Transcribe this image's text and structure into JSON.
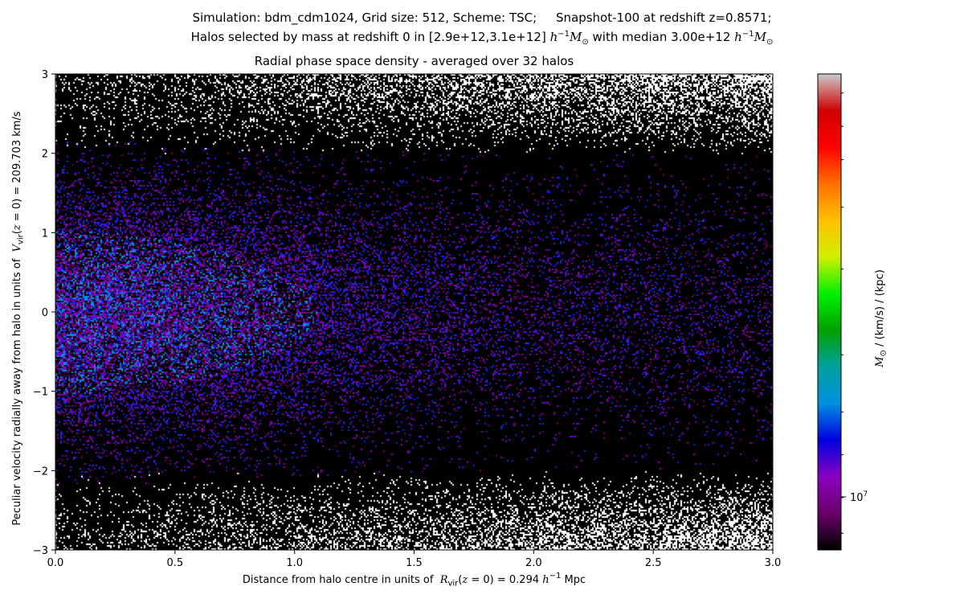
{
  "suptitle_line1": "Simulation: bdm_cdm1024, Grid size: 512, Scheme: TSC;     Snapshot-100 at redshift z=0.8571;",
  "suptitle_line2_prefix": "Halos selected by mass at redshift 0 in [2.9e+12,3.1e+12] ",
  "suptitle_line2_mid": " with median 3.00e+12 ",
  "mass_unit_h": "h",
  "mass_unit_exp": "−1",
  "mass_unit_M": "M",
  "mass_unit_sun": "⊙",
  "colors": {
    "colormap": [
      "#000000",
      "#6a006a",
      "#8a00c0",
      "#0000e0",
      "#0090e0",
      "#00a0a0",
      "#00a000",
      "#00f000",
      "#d0f000",
      "#ffc000",
      "#ff7000",
      "#ff0000",
      "#d00000",
      "#cccccc"
    ],
    "background": "#000000",
    "saturated": "#ffffff"
  },
  "chart_data": {
    "type": "heatmap",
    "title": "Radial phase space density - averaged over 32 halos",
    "xlabel_prefix": "Distance from halo centre in units of  ",
    "xlabel_R": "R",
    "xlabel_sub": "vir",
    "xlabel_mid": "(",
    "xlabel_z": "z",
    "xlabel_eq": " = 0) = 0.294 ",
    "xlabel_h": "h",
    "xlabel_exp": "−1",
    "xlabel_unit": " Mpc",
    "ylabel_prefix": "Peculiar velocity radially away from halo in units of  ",
    "ylabel_V": "V",
    "ylabel_sub": "vir",
    "ylabel_mid": "(",
    "ylabel_z": "z",
    "ylabel_eq": " = 0) = 209.703 km/s",
    "xlim": [
      0.0,
      3.0
    ],
    "ylim": [
      -3,
      3
    ],
    "xticks": [
      "0.0",
      "0.5",
      "1.0",
      "1.5",
      "2.0",
      "2.5",
      "3.0"
    ],
    "xtick_values": [
      0.0,
      0.5,
      1.0,
      1.5,
      2.0,
      2.5,
      3.0
    ],
    "yticks": [
      "−3",
      "−2",
      "−1",
      "0",
      "1",
      "2",
      "3"
    ],
    "ytick_values": [
      -3,
      -2,
      -1,
      0,
      1,
      2,
      3
    ],
    "colorbar": {
      "label_M": "M",
      "label_sun": "⊙",
      "label_rest": " / (km/s) / (kpc)",
      "scale": "log",
      "tick_label_base": "10",
      "tick_label_exp": "7"
    },
    "description_of_density": "Dense purple/blue core near distance 0–0.8 and velocity −1.5 to 1.5; sparse white speckles near velocity ±3 at larger distances."
  }
}
